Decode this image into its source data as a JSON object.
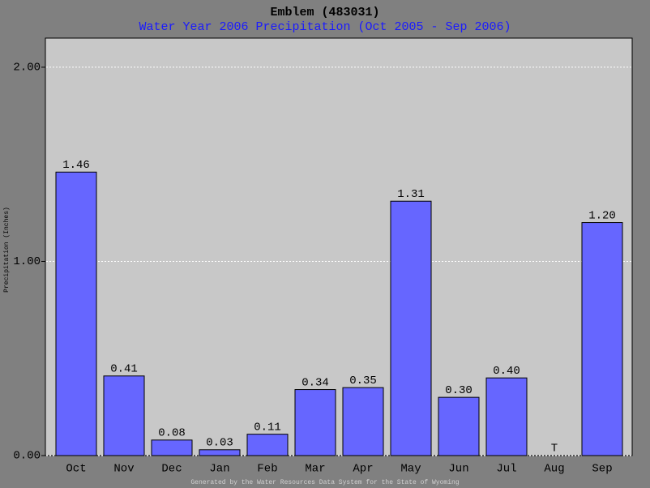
{
  "chart_data": {
    "type": "bar",
    "title": "Emblem (483031)",
    "subtitle": "Water Year 2006 Precipitation (Oct 2005 - Sep 2006)",
    "y_label": "Precipitation (Inches)",
    "footer": "Generated by the Water Resources Data System for the State of Wyoming",
    "categories": [
      "Oct",
      "Nov",
      "Dec",
      "Jan",
      "Feb",
      "Mar",
      "Apr",
      "May",
      "Jun",
      "Jul",
      "Aug",
      "Sep"
    ],
    "values": [
      1.46,
      0.41,
      0.08,
      0.03,
      0.11,
      0.34,
      0.35,
      1.31,
      0.3,
      0.4,
      0,
      1.2
    ],
    "value_labels": [
      "1.46",
      "0.41",
      "0.08",
      "0.03",
      "0.11",
      "0.34",
      "0.35",
      "1.31",
      "0.30",
      "0.40",
      "T",
      "1.20"
    ],
    "color": "#6666ff",
    "ylim": [
      0,
      2.15
    ],
    "yticks": [
      {
        "value": 0,
        "label": "0.00"
      },
      {
        "value": 1,
        "label": "1.00"
      },
      {
        "value": 2,
        "label": "2.00"
      }
    ],
    "grid": true
  }
}
